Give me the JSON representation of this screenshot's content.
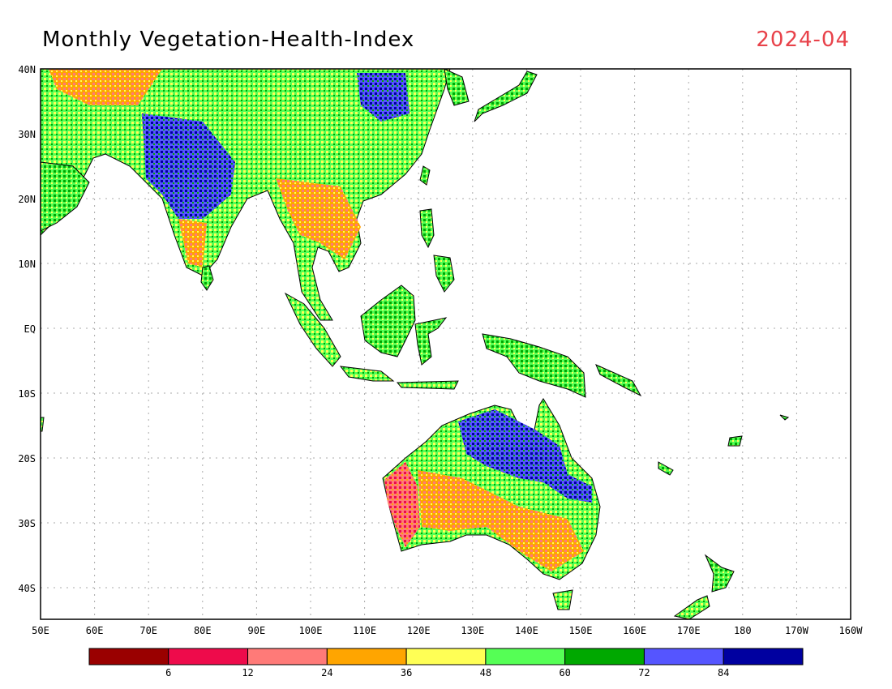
{
  "title": "Monthly Vegetation-Health-Index",
  "date": "2024-04",
  "lat_labels": [
    "40N",
    "30N",
    "20N",
    "10N",
    "EQ",
    "10S",
    "20S",
    "30S",
    "40S"
  ],
  "lon_labels": [
    "50E",
    "60E",
    "70E",
    "80E",
    "90E",
    "100E",
    "110E",
    "120E",
    "130E",
    "140E",
    "150E",
    "160E",
    "170E",
    "180",
    "170W",
    "160W"
  ],
  "legend": {
    "colors": [
      "#9a0000",
      "#ee0b4b",
      "#ff7a78",
      "#ffa500",
      "#ffff55",
      "#55ff55",
      "#00a800",
      "#5555ff",
      "#0000a0"
    ],
    "labels": [
      "6",
      "12",
      "24",
      "36",
      "48",
      "60",
      "72",
      "84"
    ]
  },
  "colors": {
    "land_outline": "#000000",
    "grid": "#aaaaaa",
    "ocean": "#ffffff"
  }
}
